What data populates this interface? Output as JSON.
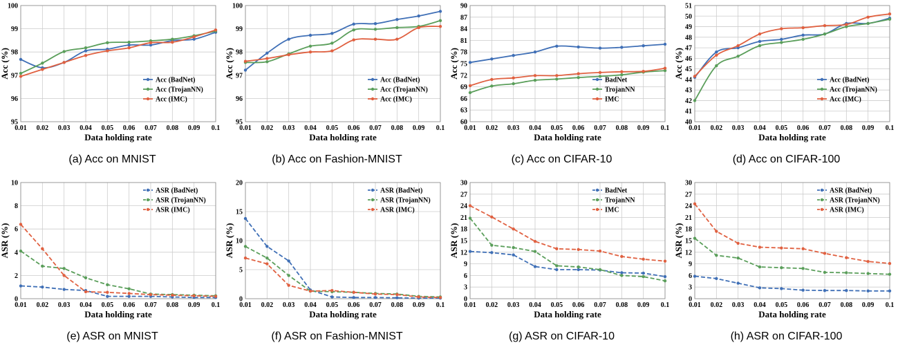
{
  "chart_data": [
    {
      "id": "a",
      "type": "line",
      "caption": "(a) Acc on MNIST",
      "xlabel": "Data holding rate",
      "ylabel": "Acc (%)",
      "ylim": [
        95,
        100
      ],
      "ytick_step": 1,
      "yticks_decimals": 0,
      "dashed": false,
      "legend_position": "bottom-right",
      "x": [
        0.01,
        0.02,
        0.03,
        0.04,
        0.05,
        0.06,
        0.07,
        0.08,
        0.09,
        0.1
      ],
      "series": [
        {
          "name": "Acc (BadNet)",
          "color": "#3f6fb6",
          "values": [
            97.68,
            97.32,
            97.55,
            98.05,
            98.12,
            98.3,
            98.3,
            98.49,
            98.55,
            98.85
          ]
        },
        {
          "name": "Acc (TrojanNN)",
          "color": "#5a9e5a",
          "values": [
            97.08,
            97.52,
            98.02,
            98.18,
            98.4,
            98.42,
            98.48,
            98.55,
            98.7,
            98.9
          ]
        },
        {
          "name": "Acc (IMC)",
          "color": "#e06040",
          "values": [
            96.95,
            97.25,
            97.55,
            97.85,
            98.05,
            98.18,
            98.4,
            98.42,
            98.65,
            98.95
          ]
        }
      ]
    },
    {
      "id": "b",
      "type": "line",
      "caption": "(b) Acc on Fashion-MNIST",
      "xlabel": "Data holding rate",
      "ylabel": "Acc (%)",
      "ylim": [
        95,
        100
      ],
      "ytick_step": 1,
      "yticks_decimals": 0,
      "dashed": false,
      "legend_position": "bottom-right",
      "x": [
        0.01,
        0.02,
        0.03,
        0.04,
        0.05,
        0.06,
        0.07,
        0.08,
        0.09,
        0.1
      ],
      "series": [
        {
          "name": "Acc (BadNet)",
          "color": "#3f6fb6",
          "values": [
            97.22,
            97.95,
            98.55,
            98.72,
            98.8,
            99.2,
            99.22,
            99.4,
            99.55,
            99.75
          ]
        },
        {
          "name": "Acc (TrojanNN)",
          "color": "#5a9e5a",
          "values": [
            97.55,
            97.58,
            97.92,
            98.25,
            98.38,
            98.95,
            98.98,
            99.05,
            99.1,
            99.35
          ]
        },
        {
          "name": "Acc (IMC)",
          "color": "#e06040",
          "values": [
            97.6,
            97.72,
            97.88,
            98.0,
            98.05,
            98.52,
            98.55,
            98.55,
            99.05,
            99.1
          ]
        }
      ]
    },
    {
      "id": "c",
      "type": "line",
      "caption": "(c) Acc on CIFAR-10",
      "xlabel": "Data holding rate",
      "ylabel": "Acc (%)",
      "ylim": [
        60,
        90
      ],
      "ytick_step": 3,
      "yticks_decimals": 0,
      "dashed": false,
      "legend_position": "bottom-right",
      "x": [
        0.01,
        0.02,
        0.03,
        0.04,
        0.05,
        0.06,
        0.07,
        0.08,
        0.09,
        0.1
      ],
      "series": [
        {
          "name": "BadNet",
          "color": "#3f6fb6",
          "values": [
            75.3,
            76.2,
            77.1,
            78.0,
            79.5,
            79.3,
            79.0,
            79.2,
            79.6,
            80.0
          ]
        },
        {
          "name": "TrojanNN",
          "color": "#5a9e5a",
          "values": [
            67.5,
            69.2,
            69.8,
            70.7,
            71.0,
            71.4,
            71.7,
            72.1,
            72.8,
            73.2
          ]
        },
        {
          "name": "IMC",
          "color": "#e06040",
          "values": [
            69.3,
            70.9,
            71.3,
            71.9,
            71.9,
            72.4,
            72.7,
            72.9,
            73.0,
            73.8
          ]
        }
      ]
    },
    {
      "id": "d",
      "type": "line",
      "caption": "(d) Acc on CIFAR-100",
      "xlabel": "Data holding rate",
      "ylabel": "Acc (%)",
      "ylim": [
        40,
        51
      ],
      "ytick_step": 1,
      "yticks_decimals": 0,
      "dashed": false,
      "legend_position": "bottom-right",
      "x": [
        0.01,
        0.02,
        0.03,
        0.04,
        0.05,
        0.06,
        0.07,
        0.08,
        0.09,
        0.1
      ],
      "series": [
        {
          "name": "Acc (BadNet)",
          "color": "#3f6fb6",
          "values": [
            44.2,
            46.6,
            47.0,
            47.6,
            47.8,
            48.2,
            48.3,
            49.3,
            49.3,
            49.8
          ]
        },
        {
          "name": "Acc (TrojanNN)",
          "color": "#5a9e5a",
          "values": [
            42.0,
            45.3,
            46.2,
            47.2,
            47.5,
            47.8,
            48.3,
            49.0,
            49.3,
            49.7
          ]
        },
        {
          "name": "Acc (IMC)",
          "color": "#e06040",
          "values": [
            44.3,
            46.3,
            47.2,
            48.3,
            48.8,
            48.9,
            49.1,
            49.2,
            49.9,
            50.2
          ]
        }
      ]
    },
    {
      "id": "e",
      "type": "line",
      "caption": "(e) ASR on MNIST",
      "xlabel": "Data holding rate",
      "ylabel": "ASR (%)",
      "ylim": [
        0,
        10
      ],
      "ytick_step": 2,
      "yticks_decimals": 0,
      "dashed": true,
      "legend_position": "top-right",
      "x": [
        0.01,
        0.02,
        0.03,
        0.04,
        0.05,
        0.06,
        0.07,
        0.08,
        0.09,
        0.1
      ],
      "series": [
        {
          "name": "ASR (BadNet)",
          "color": "#3f6fb6",
          "values": [
            1.1,
            1.0,
            0.8,
            0.7,
            0.2,
            0.2,
            0.2,
            0.15,
            0.1,
            0.1
          ]
        },
        {
          "name": "ASR (TrojanNN)",
          "color": "#5a9e5a",
          "values": [
            4.1,
            2.8,
            2.6,
            1.8,
            1.2,
            0.85,
            0.4,
            0.35,
            0.3,
            0.25
          ]
        },
        {
          "name": "ASR (IMC)",
          "color": "#e06040",
          "values": [
            6.4,
            4.3,
            2.0,
            0.6,
            0.55,
            0.45,
            0.35,
            0.3,
            0.25,
            0.2
          ]
        }
      ]
    },
    {
      "id": "f",
      "type": "line",
      "caption": "(f) ASR on Fashion-MNIST",
      "xlabel": "Data holding rate",
      "ylabel": "ASR (%)",
      "ylim": [
        0,
        20
      ],
      "ytick_step": 5,
      "yticks_decimals": 0,
      "dashed": true,
      "legend_position": "top-right",
      "x": [
        0.01,
        0.02,
        0.03,
        0.04,
        0.05,
        0.06,
        0.07,
        0.08,
        0.09,
        0.1
      ],
      "series": [
        {
          "name": "ASR (BadNet)",
          "color": "#3f6fb6",
          "values": [
            13.8,
            9.0,
            6.5,
            1.5,
            0.3,
            0.2,
            0.2,
            0.15,
            0.1,
            0.1
          ]
        },
        {
          "name": "ASR (TrojanNN)",
          "color": "#5a9e5a",
          "values": [
            9.0,
            7.0,
            4.0,
            1.3,
            1.2,
            1.1,
            0.9,
            0.8,
            0.4,
            0.3
          ]
        },
        {
          "name": "ASR (IMC)",
          "color": "#e06040",
          "values": [
            7.0,
            6.0,
            2.3,
            1.3,
            1.4,
            1.1,
            0.8,
            0.7,
            0.3,
            0.2
          ]
        }
      ]
    },
    {
      "id": "g",
      "type": "line",
      "caption": "(g) ASR on CIFAR-10",
      "xlabel": "Data holding rate",
      "ylabel": "ASR (%)",
      "ylim": [
        0,
        30
      ],
      "ytick_step": 3,
      "yticks_decimals": 0,
      "dashed": true,
      "legend_position": "top-right",
      "x": [
        0.01,
        0.02,
        0.03,
        0.04,
        0.05,
        0.06,
        0.07,
        0.08,
        0.09,
        0.1
      ],
      "series": [
        {
          "name": "BadNet",
          "color": "#3f6fb6",
          "values": [
            12.2,
            11.9,
            11.3,
            8.3,
            7.5,
            7.5,
            7.4,
            6.7,
            6.6,
            5.7
          ]
        },
        {
          "name": "TrojanNN",
          "color": "#5a9e5a",
          "values": [
            20.8,
            13.8,
            13.2,
            12.2,
            8.5,
            8.2,
            7.5,
            6.0,
            5.7,
            4.6
          ]
        },
        {
          "name": "IMC",
          "color": "#e06040",
          "values": [
            24.0,
            21.1,
            18.0,
            14.8,
            12.9,
            12.7,
            12.3,
            10.9,
            10.2,
            9.7
          ]
        }
      ]
    },
    {
      "id": "h",
      "type": "line",
      "caption": "(h) ASR on CIFAR-100",
      "xlabel": "Data holding rate",
      "ylabel": "ASR (%)",
      "ylim": [
        0,
        30
      ],
      "ytick_step": 3,
      "yticks_decimals": 0,
      "dashed": true,
      "legend_position": "top-right",
      "x": [
        0.01,
        0.02,
        0.03,
        0.04,
        0.05,
        0.06,
        0.07,
        0.08,
        0.09,
        0.1
      ],
      "series": [
        {
          "name": "ASR (BadNet)",
          "color": "#3f6fb6",
          "values": [
            5.8,
            5.2,
            4.0,
            2.8,
            2.6,
            2.2,
            2.1,
            2.1,
            2.0,
            2.0
          ]
        },
        {
          "name": "ASR (TrojanNN)",
          "color": "#5a9e5a",
          "values": [
            15.6,
            11.2,
            10.5,
            8.2,
            8.0,
            7.8,
            6.8,
            6.7,
            6.5,
            6.3
          ]
        },
        {
          "name": "ASR (IMC)",
          "color": "#e06040",
          "values": [
            24.5,
            17.4,
            14.3,
            13.3,
            13.1,
            12.9,
            11.7,
            10.6,
            9.6,
            9.1
          ]
        }
      ]
    }
  ],
  "x_tick_labels": [
    "0.01",
    "0.02",
    "0.03",
    "0.04",
    "0.05",
    "0.06",
    "0.07",
    "0.08",
    "0.09",
    "0.1"
  ]
}
